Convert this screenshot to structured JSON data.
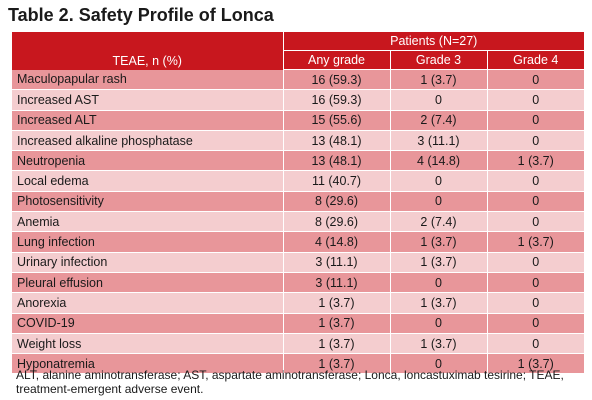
{
  "title": "Table 2. Safety Profile of Lonca",
  "table": {
    "row_header": "TEAE, n (%)",
    "group_header": "Patients (N=27)",
    "columns": [
      "Any grade",
      "Grade 3",
      "Grade 4"
    ],
    "rows": [
      {
        "name": "Maculopapular rash",
        "any": "16 (59.3)",
        "g3": "1 (3.7)",
        "g4": "0"
      },
      {
        "name": "Increased AST",
        "any": "16 (59.3)",
        "g3": "0",
        "g4": "0"
      },
      {
        "name": "Increased ALT",
        "any": "15 (55.6)",
        "g3": "2 (7.4)",
        "g4": "0"
      },
      {
        "name": "Increased alkaline phosphatase",
        "any": "13 (48.1)",
        "g3": "3 (11.1)",
        "g4": "0"
      },
      {
        "name": "Neutropenia",
        "any": "13 (48.1)",
        "g3": "4 (14.8)",
        "g4": "1 (3.7)"
      },
      {
        "name": "Local edema",
        "any": "11 (40.7)",
        "g3": "0",
        "g4": "0"
      },
      {
        "name": "Photosensitivity",
        "any": "8 (29.6)",
        "g3": "0",
        "g4": "0"
      },
      {
        "name": "Anemia",
        "any": "8 (29.6)",
        "g3": "2 (7.4)",
        "g4": "0"
      },
      {
        "name": "Lung infection",
        "any": "4 (14.8)",
        "g3": "1 (3.7)",
        "g4": "1 (3.7)"
      },
      {
        "name": "Urinary infection",
        "any": "3 (11.1)",
        "g3": "1 (3.7)",
        "g4": "0"
      },
      {
        "name": "Pleural effusion",
        "any": "3 (11.1)",
        "g3": "0",
        "g4": "0"
      },
      {
        "name": "Anorexia",
        "any": "1 (3.7)",
        "g3": "1 (3.7)",
        "g4": "0"
      },
      {
        "name": "COVID-19",
        "any": "1 (3.7)",
        "g3": "0",
        "g4": "0"
      },
      {
        "name": "Weight loss",
        "any": "1 (3.7)",
        "g3": "1 (3.7)",
        "g4": "0"
      },
      {
        "name": "Hyponatremia",
        "any": "1 (3.7)",
        "g3": "0",
        "g4": "1 (3.7)"
      }
    ]
  },
  "footnote": "ALT, alanine aminotransferase; AST, aspartate aminotransferase; Lonca, loncastuximab tesirine; TEAE, treatment-emergent adverse event.",
  "colors": {
    "header_red": "#c8171e",
    "row_dark": "#e8969a",
    "row_light": "#f4cdcf"
  }
}
